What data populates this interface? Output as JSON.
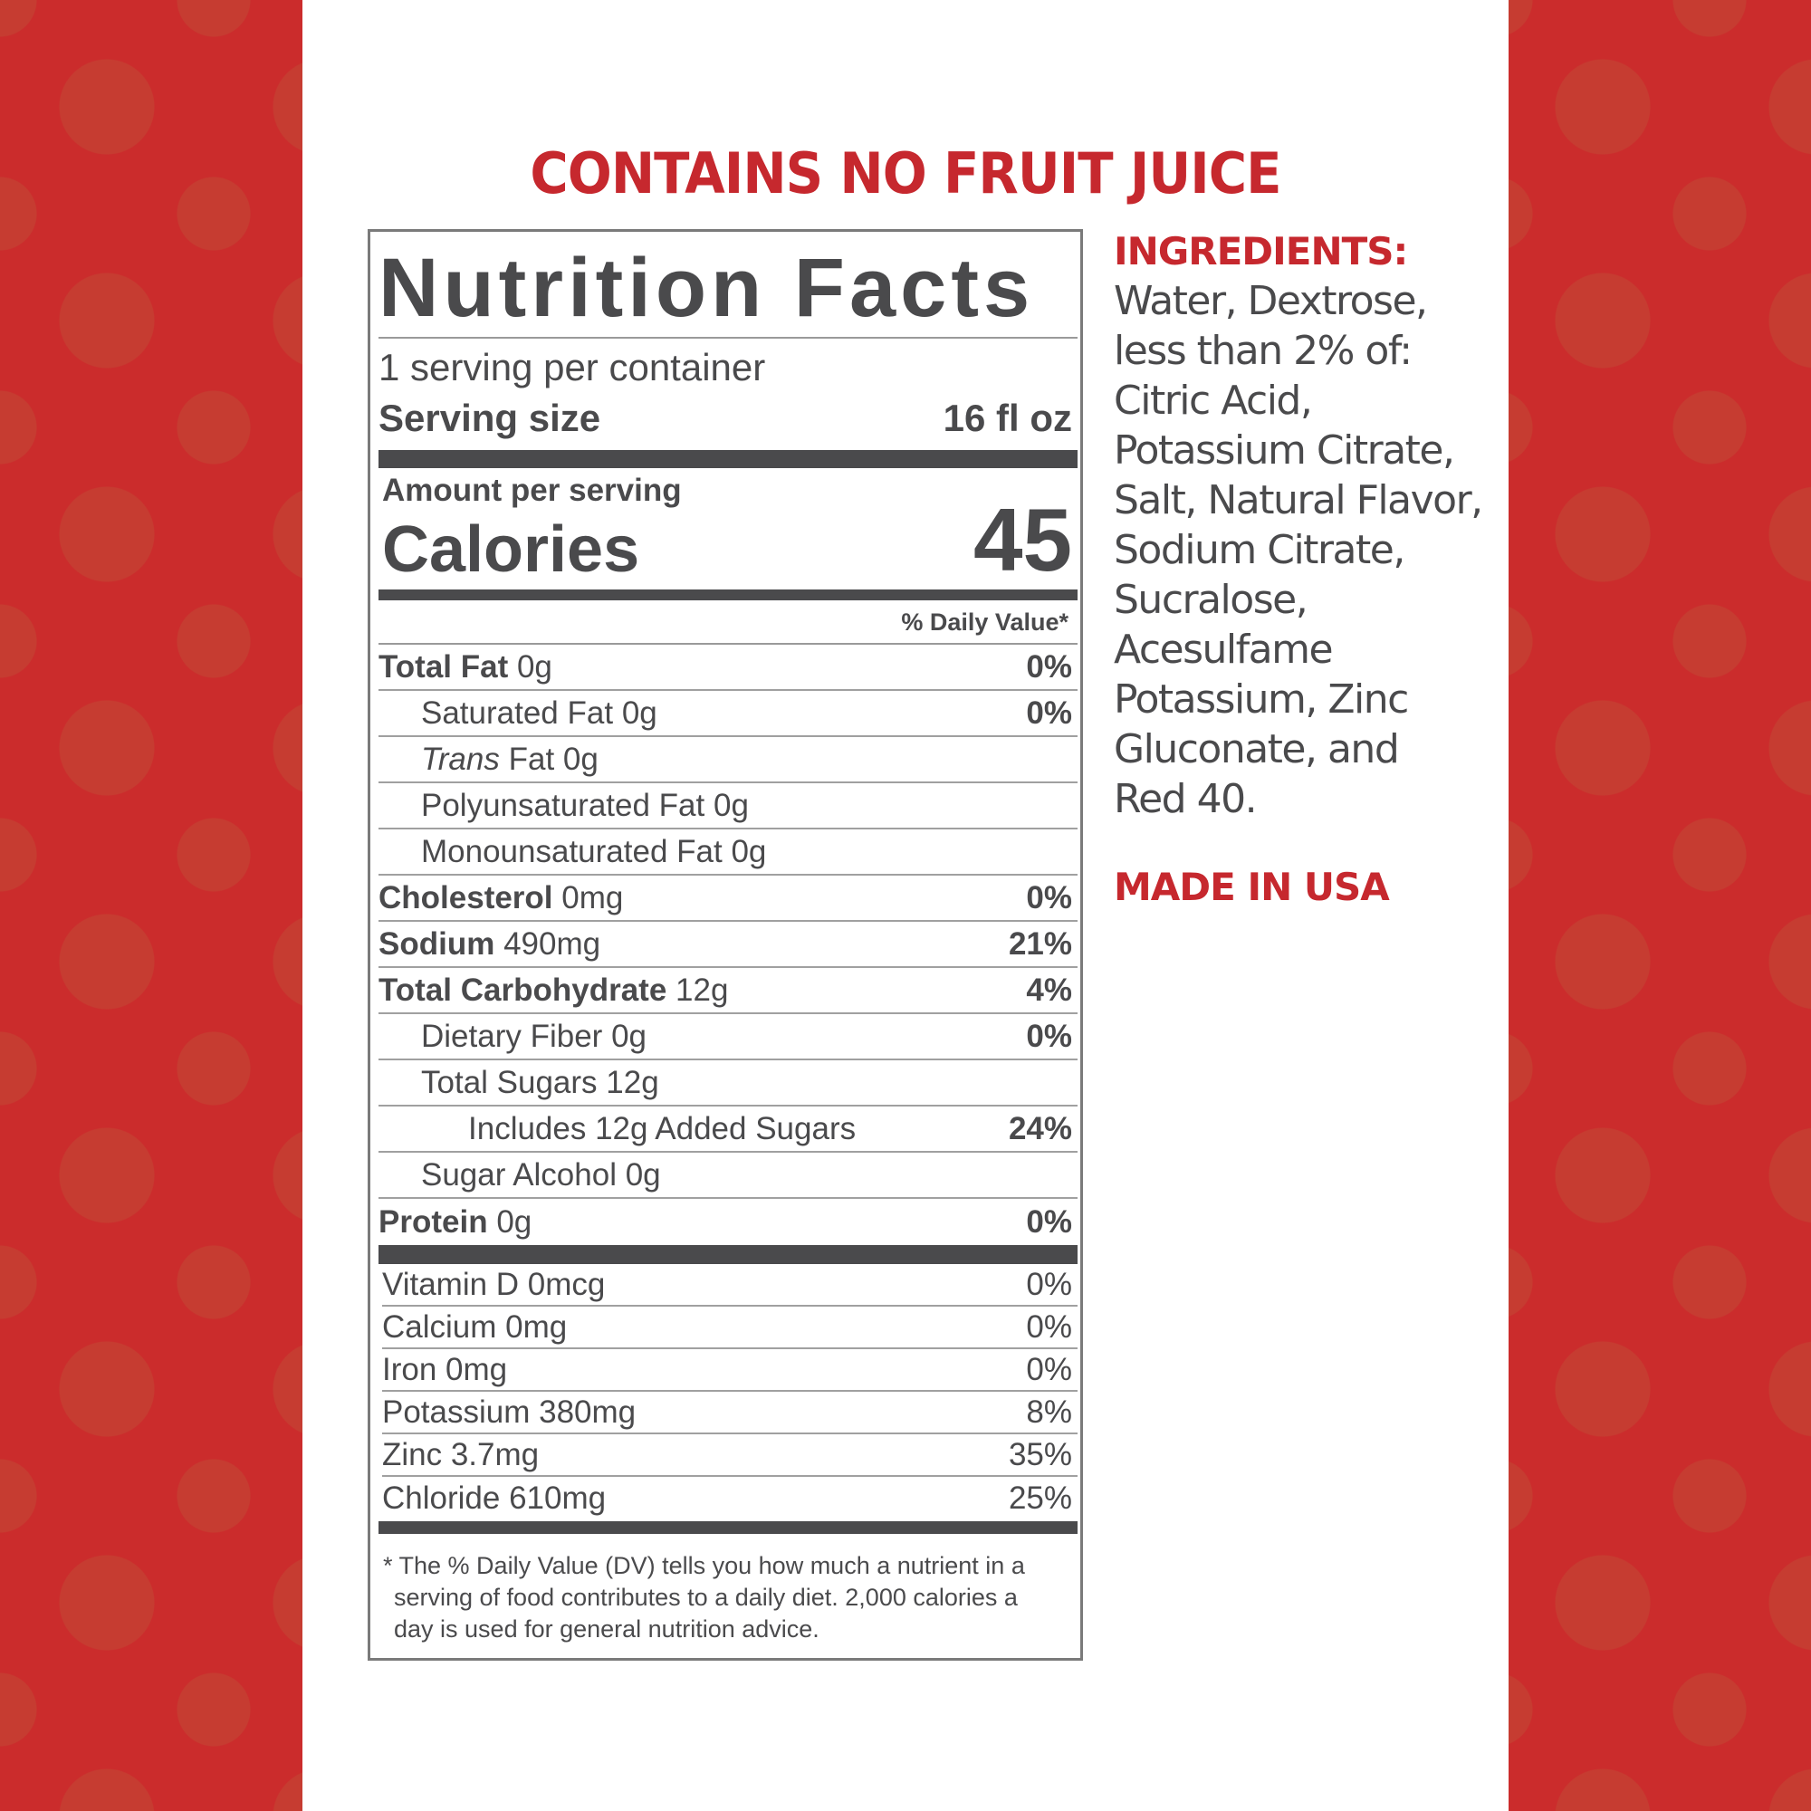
{
  "headline": "CONTAINS NO FRUIT JUICE",
  "colors": {
    "brand_red": "#c6282e",
    "background_red": "#cb2c2c",
    "label_text": "#4a4a4c"
  },
  "label": {
    "title": "Nutrition Facts",
    "servings_per_container": "1 serving per container",
    "serving_size_label": "Serving size",
    "serving_size_value": "16 fl oz",
    "amount_per_serving": "Amount per serving",
    "calories_label": "Calories",
    "calories_value": "45",
    "daily_value_header": "% Daily Value*",
    "nutrients": [
      {
        "name": "Total Fat",
        "amount": "0g",
        "dv": "0%",
        "bold": true,
        "indent": 0
      },
      {
        "name": "Saturated Fat",
        "amount": "0g",
        "dv": "0%",
        "bold": false,
        "indent": 1
      },
      {
        "name": "Trans",
        "name_suffix": "Fat",
        "amount": "0g",
        "dv": "",
        "bold": false,
        "indent": 1,
        "italic": true
      },
      {
        "name": "Polyunsaturated Fat",
        "amount": "0g",
        "dv": "",
        "bold": false,
        "indent": 1
      },
      {
        "name": "Monounsaturated Fat",
        "amount": "0g",
        "dv": "",
        "bold": false,
        "indent": 1
      },
      {
        "name": "Cholesterol",
        "amount": "0mg",
        "dv": "0%",
        "bold": true,
        "indent": 0
      },
      {
        "name": "Sodium",
        "amount": "490mg",
        "dv": "21%",
        "bold": true,
        "indent": 0
      },
      {
        "name": "Total Carbohydrate",
        "amount": "12g",
        "dv": "4%",
        "bold": true,
        "indent": 0
      },
      {
        "name": "Dietary Fiber",
        "amount": "0g",
        "dv": "0%",
        "bold": false,
        "indent": 1
      },
      {
        "name": "Total Sugars",
        "amount": "12g",
        "dv": "",
        "bold": false,
        "indent": 1
      },
      {
        "name": "Includes 12g Added Sugars",
        "amount": "",
        "dv": "24%",
        "bold": false,
        "indent": 2
      },
      {
        "name": "Sugar Alcohol",
        "amount": "0g",
        "dv": "",
        "bold": false,
        "indent": 1
      },
      {
        "name": "Protein",
        "amount": "0g",
        "dv": "0%",
        "bold": true,
        "indent": 0
      }
    ],
    "vitamins": [
      {
        "text": "Vitamin D 0mcg",
        "dv": "0%"
      },
      {
        "text": "Calcium 0mg",
        "dv": "0%"
      },
      {
        "text": "Iron 0mg",
        "dv": "0%"
      },
      {
        "text": "Potassium 380mg",
        "dv": "8%"
      },
      {
        "text": "Zinc 3.7mg",
        "dv": "35%"
      },
      {
        "text": "Chloride 610mg",
        "dv": "25%"
      }
    ],
    "footnote": "* The % Daily Value (DV) tells you how much a nutrient in a serving of food contributes to a daily diet. 2,000 calories a day is used for general nutrition advice."
  },
  "ingredients": {
    "heading": "INGREDIENTS:",
    "lines": [
      "Water, Dextrose,",
      "less than 2% of:",
      "Citric Acid,",
      "Potassium Citrate,",
      "Salt, Natural Flavor,",
      "Sodium Citrate,",
      "Sucralose,",
      "Acesulfame",
      "Potassium, Zinc",
      "Gluconate, and",
      "Red 40."
    ]
  },
  "origin": "MADE IN USA"
}
